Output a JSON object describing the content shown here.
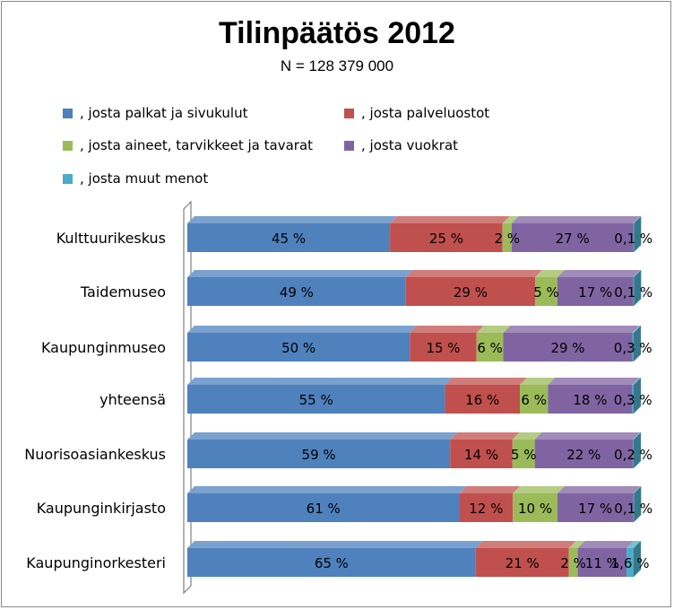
{
  "chart_data": {
    "type": "bar",
    "orientation": "horizontal",
    "stacked": true,
    "percent_stacked": true,
    "three_d": true,
    "title": "Tilinpäätös 2012",
    "subtitle": "N = 128 379 000",
    "legend_position": "top",
    "grid": false,
    "xlim": [
      0,
      100
    ],
    "categories": [
      "Kulttuurikeskus",
      "Taidemuseo",
      "Kaupunginmuseo",
      "yhteensä",
      "Nuorisoasiankeskus",
      "Kaupunginkirjasto",
      "Kaupunginorkesteri"
    ],
    "series": [
      {
        "name": ", josta palkat ja sivukulut",
        "color": "#4f81bd",
        "values": [
          45,
          49,
          50,
          55,
          59,
          61,
          65
        ],
        "labels": [
          "45 %",
          "49 %",
          "50 %",
          "55 %",
          "59 %",
          "61 %",
          "65 %"
        ]
      },
      {
        "name": ", josta palveluostot",
        "color": "#c0504d",
        "values": [
          25,
          29,
          15,
          16,
          14,
          12,
          21
        ],
        "labels": [
          "25 %",
          "29 %",
          "15 %",
          "16 %",
          "14 %",
          "12 %",
          "21 %"
        ]
      },
      {
        "name": ", josta aineet, tarvikkeet ja tavarat",
        "color": "#9bbb59",
        "values": [
          2,
          5,
          6,
          6,
          5,
          10,
          2
        ],
        "labels": [
          "2 %",
          "5 %",
          "6 %",
          "6 %",
          "5 %",
          "10 %",
          "2 %"
        ]
      },
      {
        "name": ", josta vuokrat",
        "color": "#8064a2",
        "values": [
          27,
          17,
          29,
          18,
          22,
          17,
          11
        ],
        "labels": [
          "27 %",
          "17 %",
          "29 %",
          "18 %",
          "22 %",
          "17 %",
          "11 %"
        ]
      },
      {
        "name": ", josta muut menot",
        "color": "#4bacc6",
        "values": [
          0.1,
          0.1,
          0.3,
          0.3,
          0.2,
          0.1,
          1.6
        ],
        "labels": [
          "0,1 %",
          "0,1 %",
          "0,3 %",
          "0,3 %",
          "0,2 %",
          "0,1 %",
          "1,6 %"
        ]
      }
    ]
  }
}
